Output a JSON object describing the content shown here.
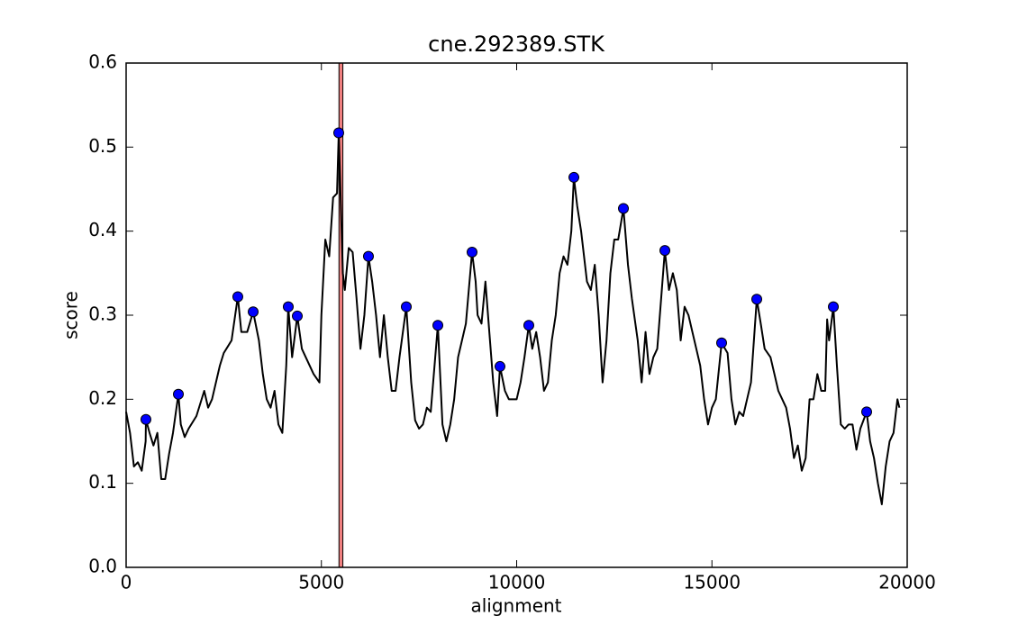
{
  "chart_data": {
    "type": "line",
    "title": "cne.292389.STK",
    "xlabel": "alignment",
    "ylabel": "score",
    "xlim": [
      0,
      20000
    ],
    "ylim": [
      0,
      0.6
    ],
    "xticks": [
      0,
      5000,
      10000,
      15000,
      20000
    ],
    "yticks": [
      {
        "value": 0,
        "label": "0.0"
      },
      0.1,
      0.2,
      0.3,
      0.4,
      0.5,
      0.6
    ],
    "highlight": {
      "x": [
        5450,
        5550
      ],
      "color": "#f08080"
    },
    "series": [
      {
        "color": "#000000",
        "x": [
          0,
          100,
          200,
          300,
          400,
          500,
          507,
          600,
          700,
          800,
          900,
          1000,
          1100,
          1200,
          1338,
          1400,
          1500,
          1600,
          1800,
          2000,
          2100,
          2200,
          2400,
          2500,
          2700,
          2860,
          2950,
          3100,
          3253,
          3400,
          3500,
          3600,
          3700,
          3800,
          3900,
          4000,
          4100,
          4152,
          4250,
          4383,
          4500,
          4600,
          4800,
          4950,
          5000,
          5100,
          5200,
          5300,
          5400,
          5444,
          5550,
          5600,
          5700,
          5800,
          5900,
          6000,
          6100,
          6205,
          6300,
          6400,
          6500,
          6600,
          6700,
          6800,
          6900,
          7000,
          7174,
          7300,
          7400,
          7500,
          7600,
          7700,
          7800,
          7982,
          8100,
          8200,
          8300,
          8400,
          8500,
          8600,
          8700,
          8858,
          8950,
          9000,
          9100,
          9200,
          9300,
          9400,
          9500,
          9573,
          9700,
          9800,
          9900,
          10000,
          10100,
          10200,
          10311,
          10400,
          10500,
          10600,
          10700,
          10800,
          10900,
          11000,
          11100,
          11200,
          11300,
          11400,
          11465,
          11550,
          11650,
          11800,
          11900,
          12000,
          12100,
          12200,
          12300,
          12400,
          12500,
          12600,
          12734,
          12850,
          12950,
          13100,
          13200,
          13300,
          13400,
          13500,
          13600,
          13795,
          13900,
          14000,
          14100,
          14200,
          14300,
          14400,
          14500,
          14600,
          14700,
          14800,
          14900,
          15000,
          15100,
          15248,
          15400,
          15500,
          15600,
          15700,
          15800,
          15900,
          16000,
          16148,
          16250,
          16350,
          16500,
          16600,
          16700,
          16800,
          16900,
          17000,
          17100,
          17200,
          17300,
          17400,
          17500,
          17600,
          17700,
          17800,
          17900,
          17950,
          18000,
          18109,
          18200,
          18300,
          18400,
          18500,
          18600,
          18700,
          18800,
          18962,
          19050,
          19150,
          19250,
          19350,
          19450,
          19550,
          19650,
          19750,
          19800
        ],
        "values": [
          0.185,
          0.16,
          0.12,
          0.125,
          0.115,
          0.15,
          0.176,
          0.16,
          0.145,
          0.16,
          0.105,
          0.105,
          0.135,
          0.16,
          0.206,
          0.17,
          0.155,
          0.165,
          0.18,
          0.21,
          0.19,
          0.2,
          0.24,
          0.255,
          0.27,
          0.322,
          0.28,
          0.28,
          0.304,
          0.27,
          0.23,
          0.2,
          0.19,
          0.21,
          0.17,
          0.16,
          0.24,
          0.31,
          0.25,
          0.299,
          0.26,
          0.25,
          0.23,
          0.22,
          0.3,
          0.39,
          0.37,
          0.44,
          0.445,
          0.517,
          0.35,
          0.33,
          0.38,
          0.375,
          0.32,
          0.26,
          0.3,
          0.37,
          0.34,
          0.3,
          0.25,
          0.3,
          0.25,
          0.21,
          0.21,
          0.25,
          0.31,
          0.22,
          0.175,
          0.165,
          0.17,
          0.19,
          0.185,
          0.288,
          0.17,
          0.15,
          0.17,
          0.2,
          0.25,
          0.27,
          0.29,
          0.375,
          0.34,
          0.3,
          0.29,
          0.34,
          0.28,
          0.22,
          0.18,
          0.239,
          0.21,
          0.2,
          0.2,
          0.2,
          0.22,
          0.25,
          0.288,
          0.26,
          0.28,
          0.25,
          0.21,
          0.22,
          0.27,
          0.3,
          0.35,
          0.37,
          0.36,
          0.4,
          0.464,
          0.43,
          0.4,
          0.34,
          0.33,
          0.36,
          0.3,
          0.22,
          0.27,
          0.35,
          0.39,
          0.39,
          0.427,
          0.36,
          0.32,
          0.27,
          0.22,
          0.28,
          0.23,
          0.25,
          0.26,
          0.377,
          0.33,
          0.35,
          0.33,
          0.27,
          0.31,
          0.3,
          0.28,
          0.26,
          0.24,
          0.2,
          0.17,
          0.19,
          0.2,
          0.267,
          0.255,
          0.2,
          0.17,
          0.185,
          0.18,
          0.2,
          0.22,
          0.319,
          0.29,
          0.26,
          0.25,
          0.23,
          0.21,
          0.2,
          0.19,
          0.165,
          0.13,
          0.145,
          0.115,
          0.13,
          0.2,
          0.2,
          0.23,
          0.21,
          0.21,
          0.295,
          0.27,
          0.31,
          0.24,
          0.17,
          0.165,
          0.17,
          0.17,
          0.14,
          0.165,
          0.185,
          0.15,
          0.13,
          0.1,
          0.075,
          0.12,
          0.15,
          0.16,
          0.2,
          0.19
        ]
      },
      {
        "color": "#0000ff",
        "markers": true,
        "x": [
          507,
          1338,
          2860,
          3253,
          4152,
          4383,
          5444,
          6205,
          7174,
          7982,
          8858,
          9573,
          10311,
          11465,
          12734,
          13795,
          15248,
          16148,
          18109,
          18962
        ],
        "values": [
          0.176,
          0.206,
          0.322,
          0.304,
          0.31,
          0.299,
          0.517,
          0.37,
          0.31,
          0.288,
          0.375,
          0.239,
          0.288,
          0.464,
          0.427,
          0.377,
          0.267,
          0.319,
          0.31,
          0.185
        ]
      }
    ]
  }
}
